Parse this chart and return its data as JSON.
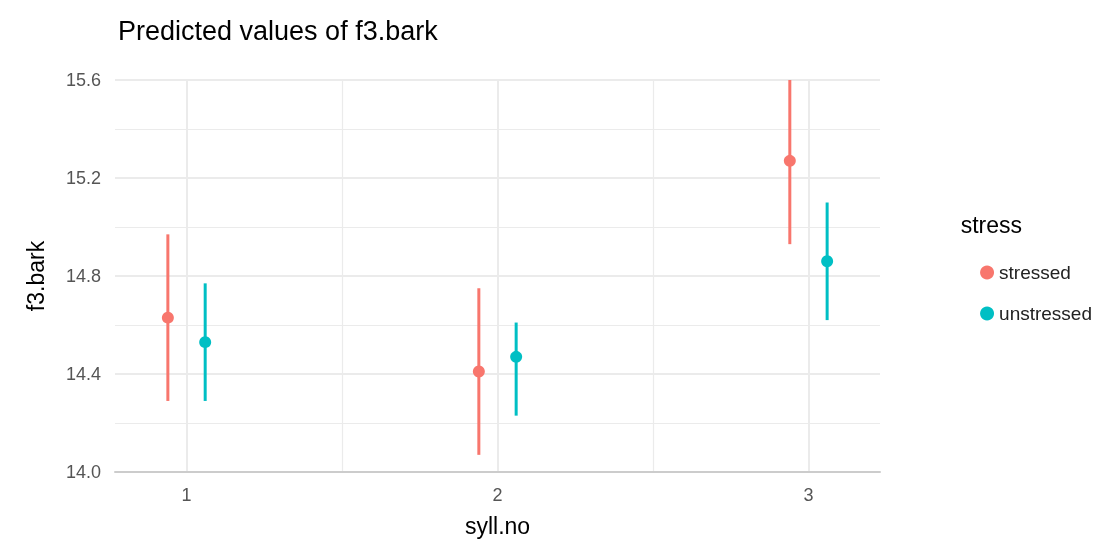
{
  "chart_data": {
    "type": "scatter",
    "title": "Predicted values of f3.bark",
    "xlabel": "syll.no",
    "ylabel": "f3.bark",
    "legend_title": "stress",
    "categories": [
      "1",
      "2",
      "3"
    ],
    "series": [
      {
        "name": "stressed",
        "color": "#f8766d",
        "values": [
          14.63,
          14.41,
          15.27
        ],
        "errors": [
          [
            14.29,
            14.97
          ],
          [
            14.07,
            14.75
          ],
          [
            14.93,
            15.6
          ]
        ]
      },
      {
        "name": "unstressed",
        "color": "#00bfc4",
        "values": [
          14.53,
          14.47,
          14.86
        ],
        "errors": [
          [
            14.29,
            14.77
          ],
          [
            14.23,
            14.61
          ],
          [
            14.62,
            15.1
          ]
        ]
      }
    ],
    "ylim": [
      14.0,
      15.6
    ],
    "yticks": [
      {
        "value": 14,
        "label": "14.0"
      },
      {
        "value": 14.4,
        "label": "14.4"
      },
      {
        "value": 14.8,
        "label": "14.8"
      },
      {
        "value": 15.2,
        "label": "15.2"
      },
      {
        "value": 15.6,
        "label": "15.6"
      }
    ],
    "grid": true,
    "legend": "right",
    "marker": "circle"
  }
}
